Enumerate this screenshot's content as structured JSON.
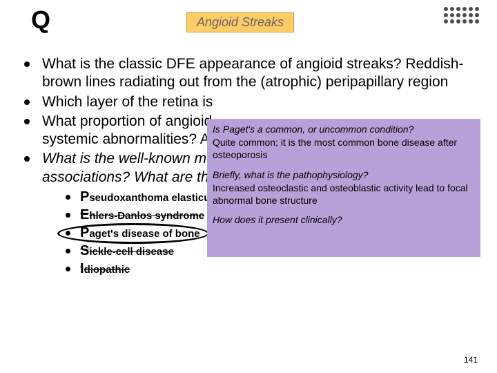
{
  "header": {
    "q": "Q",
    "title": "Angioid Streaks"
  },
  "bullets": {
    "b1": "What is the classic DFE appearance of angioid streaks? Reddish-brown lines radiating out from the (atrophic) peripapillary region",
    "b2": "Which layer of the retina is",
    "b3a": "What proportion of angioid",
    "b3b": "systemic abnormalities? A",
    "b4a": "What is the well-known m",
    "b4b": "associations? What are th"
  },
  "sublist": {
    "s1_cap": "P",
    "s1_rest": "seudoxanthoma elasticum (P",
    "s2_cap": "E",
    "s2_rest": "hlers-Danlos syndrome",
    "s3_cap": "P",
    "s3_rest": "aget's disease of bone",
    "s4_cap": "S",
    "s4_rest": "ickle-cell disease",
    "s5_cap": "I",
    "s5_rest": "diopathic"
  },
  "purple": {
    "q1": "Is Paget's a common, or uncommon condition?",
    "a1": "Quite common; it is the most common bone disease after  osteoporosis",
    "q2": "Briefly, what is the pathophysiology?",
    "a2": "Increased osteoclastic and osteoblastic activity lead to focal abnormal bone structure",
    "q3": "How does it present clinically?"
  },
  "page": "141",
  "colors": {
    "title_bg": "#ffcc66",
    "purple_bg": "#b8a0d8"
  }
}
